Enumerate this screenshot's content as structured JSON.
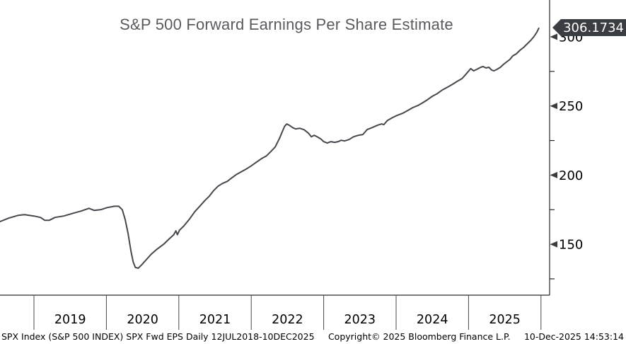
{
  "chart": {
    "title": "S&P 500 Forward Earnings Per Share Estimate",
    "last_value_label": "306.1734",
    "colors": {
      "line": "#45484d",
      "axis": "#26272a",
      "badge_bg": "#3a3d42",
      "badge_text": "#ffffff",
      "title_text": "#595a5e",
      "tick_label": "#000000"
    }
  },
  "chart_data": {
    "type": "line",
    "title": "S&P 500 Forward Earnings Per Share Estimate",
    "xlabel": "",
    "ylabel": "",
    "grid": false,
    "legend": false,
    "x_axis": {
      "start_label": "12JUL2018",
      "end_label": "10DEC2025",
      "year_labels": [
        2019,
        2020,
        2021,
        2022,
        2023,
        2024,
        2025
      ],
      "dividers": [
        2019,
        2020,
        2021,
        2022,
        2023,
        2024,
        2025,
        2026
      ]
    },
    "y_axis": {
      "side": "right",
      "major_ticks": [
        150,
        200,
        250,
        300
      ],
      "minor_ticks": [
        125,
        175,
        225,
        275
      ],
      "range": [
        113,
        327
      ]
    },
    "last_value": 306.1734,
    "series": [
      {
        "name": "SPX Fwd EPS",
        "points": [
          [
            2018.53,
            166.4
          ],
          [
            2018.65,
            168.9
          ],
          [
            2018.78,
            170.9
          ],
          [
            2018.87,
            171.4
          ],
          [
            2019.0,
            170.4
          ],
          [
            2019.09,
            169.4
          ],
          [
            2019.15,
            167.3
          ],
          [
            2019.21,
            167.3
          ],
          [
            2019.29,
            169.4
          ],
          [
            2019.41,
            170.4
          ],
          [
            2019.54,
            172.4
          ],
          [
            2019.65,
            174.0
          ],
          [
            2019.76,
            176.0
          ],
          [
            2019.83,
            174.5
          ],
          [
            2019.92,
            175.0
          ],
          [
            2020.01,
            176.5
          ],
          [
            2020.11,
            177.5
          ],
          [
            2020.17,
            177.5
          ],
          [
            2020.22,
            175.0
          ],
          [
            2020.26,
            167.8
          ],
          [
            2020.3,
            157.7
          ],
          [
            2020.34,
            144.9
          ],
          [
            2020.37,
            137.2
          ],
          [
            2020.4,
            133.2
          ],
          [
            2020.44,
            132.7
          ],
          [
            2020.49,
            135.3
          ],
          [
            2020.55,
            138.8
          ],
          [
            2020.62,
            142.9
          ],
          [
            2020.7,
            146.5
          ],
          [
            2020.79,
            150.0
          ],
          [
            2020.86,
            153.6
          ],
          [
            2020.93,
            156.9
          ],
          [
            2020.96,
            159.7
          ],
          [
            2020.98,
            156.9
          ],
          [
            2021.01,
            160.2
          ],
          [
            2021.07,
            163.3
          ],
          [
            2021.15,
            168.4
          ],
          [
            2021.22,
            173.5
          ],
          [
            2021.3,
            178.1
          ],
          [
            2021.36,
            181.7
          ],
          [
            2021.42,
            184.7
          ],
          [
            2021.48,
            188.8
          ],
          [
            2021.54,
            191.9
          ],
          [
            2021.6,
            193.9
          ],
          [
            2021.67,
            195.5
          ],
          [
            2021.73,
            198.0
          ],
          [
            2021.8,
            200.6
          ],
          [
            2021.87,
            202.6
          ],
          [
            2021.94,
            204.7
          ],
          [
            2022.0,
            206.7
          ],
          [
            2022.07,
            209.3
          ],
          [
            2022.14,
            211.8
          ],
          [
            2022.21,
            213.9
          ],
          [
            2022.27,
            217.0
          ],
          [
            2022.33,
            220.3
          ],
          [
            2022.39,
            226.5
          ],
          [
            2022.43,
            231.6
          ],
          [
            2022.46,
            235.2
          ],
          [
            2022.49,
            237.0
          ],
          [
            2022.53,
            235.9
          ],
          [
            2022.57,
            234.4
          ],
          [
            2022.61,
            233.4
          ],
          [
            2022.67,
            233.9
          ],
          [
            2022.73,
            232.8
          ],
          [
            2022.79,
            230.3
          ],
          [
            2022.83,
            227.7
          ],
          [
            2022.87,
            228.8
          ],
          [
            2022.91,
            227.7
          ],
          [
            2022.96,
            226.2
          ],
          [
            2023.0,
            224.2
          ],
          [
            2023.05,
            223.2
          ],
          [
            2023.1,
            224.2
          ],
          [
            2023.15,
            223.7
          ],
          [
            2023.2,
            224.2
          ],
          [
            2023.24,
            225.2
          ],
          [
            2023.29,
            224.7
          ],
          [
            2023.35,
            225.7
          ],
          [
            2023.41,
            227.7
          ],
          [
            2023.48,
            228.8
          ],
          [
            2023.54,
            229.3
          ],
          [
            2023.6,
            232.9
          ],
          [
            2023.67,
            234.4
          ],
          [
            2023.74,
            236.0
          ],
          [
            2023.8,
            237.0
          ],
          [
            2023.83,
            236.5
          ],
          [
            2023.88,
            239.5
          ],
          [
            2023.95,
            241.6
          ],
          [
            2024.01,
            243.1
          ],
          [
            2024.09,
            244.7
          ],
          [
            2024.16,
            246.7
          ],
          [
            2024.23,
            248.8
          ],
          [
            2024.3,
            250.3
          ],
          [
            2024.37,
            252.4
          ],
          [
            2024.43,
            254.4
          ],
          [
            2024.5,
            257.0
          ],
          [
            2024.57,
            259.0
          ],
          [
            2024.64,
            261.6
          ],
          [
            2024.71,
            263.6
          ],
          [
            2024.78,
            265.7
          ],
          [
            2024.84,
            267.7
          ],
          [
            2024.91,
            269.8
          ],
          [
            2024.97,
            273.3
          ],
          [
            2025.03,
            277.0
          ],
          [
            2025.07,
            275.4
          ],
          [
            2025.11,
            276.4
          ],
          [
            2025.17,
            278.0
          ],
          [
            2025.2,
            278.5
          ],
          [
            2025.24,
            277.5
          ],
          [
            2025.28,
            278.0
          ],
          [
            2025.32,
            275.9
          ],
          [
            2025.35,
            275.4
          ],
          [
            2025.39,
            276.4
          ],
          [
            2025.44,
            278.0
          ],
          [
            2025.48,
            280.0
          ],
          [
            2025.52,
            281.6
          ],
          [
            2025.57,
            283.6
          ],
          [
            2025.61,
            286.2
          ],
          [
            2025.66,
            287.7
          ],
          [
            2025.71,
            290.3
          ],
          [
            2025.76,
            292.3
          ],
          [
            2025.81,
            294.9
          ],
          [
            2025.86,
            297.5
          ],
          [
            2025.9,
            300.0
          ],
          [
            2025.94,
            303.1
          ],
          [
            2025.97,
            306.17
          ]
        ]
      }
    ]
  },
  "status_bar": {
    "left": "SPX Index (S&P 500 INDEX) SPX Fwd EPS Daily 12JUL2018-10DEC2025",
    "copyright": "Copyright© 2025 Bloomberg Finance L.P.",
    "timestamp": "10-Dec-2025 14:53:14"
  }
}
